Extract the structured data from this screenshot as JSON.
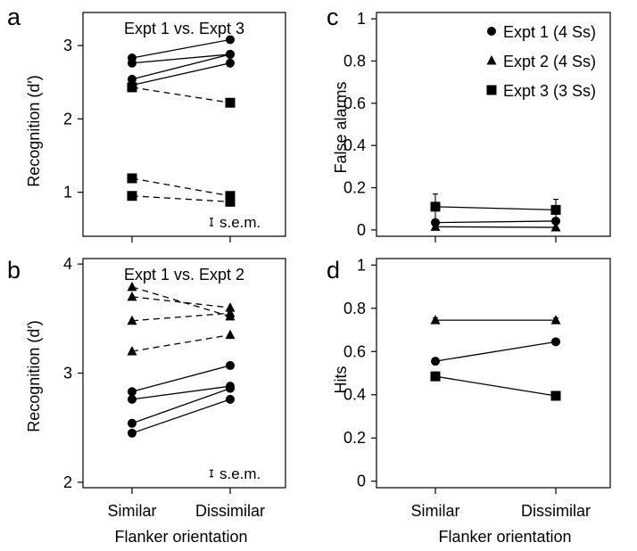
{
  "panel_letters": [
    "a",
    "b",
    "c",
    "d"
  ],
  "x_axis_label": "Flanker orientation",
  "sem_label": "s.e.m.",
  "legend": {
    "entries": [
      {
        "label": "Expt 1 (4 Ss)",
        "marker": "circle"
      },
      {
        "label": "Expt 2 (4 Ss)",
        "marker": "triangle"
      },
      {
        "label": "Expt 3 (3 Ss)",
        "marker": "square"
      }
    ],
    "placement": "top-right of panel c"
  },
  "chart_data": [
    {
      "panel": "a",
      "type": "line",
      "title": "Expt 1 vs. Expt 3",
      "ylabel": "Recognition (d′)",
      "xlabel": "Flanker orientation",
      "categories": [
        "Similar",
        "Dissimilar"
      ],
      "ylim": [
        0.4,
        3.45
      ],
      "yticks": [
        1,
        2,
        3
      ],
      "grid": false,
      "sem_bar": 0.1,
      "series": [
        {
          "marker": "circle",
          "dashed": false,
          "values": [
            2.83,
            3.08
          ]
        },
        {
          "marker": "circle",
          "dashed": false,
          "values": [
            2.76,
            2.88
          ]
        },
        {
          "marker": "circle",
          "dashed": false,
          "values": [
            2.54,
            2.88
          ]
        },
        {
          "marker": "circle",
          "dashed": false,
          "values": [
            2.46,
            2.76
          ]
        },
        {
          "marker": "square",
          "dashed": true,
          "values": [
            2.43,
            2.22
          ]
        },
        {
          "marker": "square",
          "dashed": true,
          "values": [
            1.19,
            0.95
          ]
        },
        {
          "marker": "square",
          "dashed": true,
          "values": [
            0.95,
            0.87
          ]
        }
      ]
    },
    {
      "panel": "b",
      "type": "line",
      "title": "Expt 1 vs. Expt 2",
      "ylabel": "Recognition (d′)",
      "xlabel": "Flanker orientation",
      "categories": [
        "Similar",
        "Dissimilar"
      ],
      "ylim": [
        1.95,
        4.05
      ],
      "yticks": [
        2,
        3,
        4
      ],
      "grid": false,
      "sem_bar": 0.06,
      "series": [
        {
          "marker": "triangle",
          "dashed": true,
          "values": [
            3.79,
            3.52
          ]
        },
        {
          "marker": "triangle",
          "dashed": true,
          "values": [
            3.7,
            3.6
          ]
        },
        {
          "marker": "triangle",
          "dashed": true,
          "values": [
            3.48,
            3.55
          ]
        },
        {
          "marker": "triangle",
          "dashed": true,
          "values": [
            3.2,
            3.35
          ]
        },
        {
          "marker": "circle",
          "dashed": false,
          "values": [
            2.83,
            3.07
          ]
        },
        {
          "marker": "circle",
          "dashed": false,
          "values": [
            2.76,
            2.88
          ]
        },
        {
          "marker": "circle",
          "dashed": false,
          "values": [
            2.54,
            2.86
          ]
        },
        {
          "marker": "circle",
          "dashed": false,
          "values": [
            2.45,
            2.76
          ]
        }
      ]
    },
    {
      "panel": "c",
      "type": "line",
      "title": "",
      "ylabel": "False alarms",
      "xlabel": "Flanker orientation",
      "categories": [
        "Similar",
        "Dissimilar"
      ],
      "ylim": [
        -0.03,
        1.03
      ],
      "yticks": [
        0,
        0.2,
        0.4,
        0.6,
        0.8,
        1
      ],
      "ytick_labels": [
        "0",
        "0.2",
        "0.4",
        "0.6",
        "0.8",
        "1"
      ],
      "grid": false,
      "series": [
        {
          "name": "Expt 1 (4 Ss)",
          "marker": "circle",
          "values": [
            0.035,
            0.042
          ],
          "errors": [
            0.005,
            0.006
          ]
        },
        {
          "name": "Expt 2 (4 Ss)",
          "marker": "triangle",
          "values": [
            0.015,
            0.012
          ],
          "errors": [
            0.003,
            0.003
          ]
        },
        {
          "name": "Expt 3 (3 Ss)",
          "marker": "square",
          "values": [
            0.11,
            0.095
          ],
          "errors": [
            0.06,
            0.05
          ]
        }
      ]
    },
    {
      "panel": "d",
      "type": "line",
      "title": "",
      "ylabel": "Hits",
      "xlabel": "Flanker orientation",
      "categories": [
        "Similar",
        "Dissimilar"
      ],
      "ylim": [
        -0.03,
        1.03
      ],
      "yticks": [
        0,
        0.2,
        0.4,
        0.6,
        0.8,
        1
      ],
      "ytick_labels": [
        "0",
        "0.2",
        "0.4",
        "0.6",
        "0.8",
        "1"
      ],
      "grid": false,
      "series": [
        {
          "name": "Expt 2 (4 Ss)",
          "marker": "triangle",
          "values": [
            0.745,
            0.745
          ],
          "errors": [
            0.01,
            0.01
          ]
        },
        {
          "name": "Expt 1 (4 Ss)",
          "marker": "circle",
          "values": [
            0.555,
            0.645
          ],
          "errors": [
            0.008,
            0.01
          ]
        },
        {
          "name": "Expt 3 (3 Ss)",
          "marker": "square",
          "values": [
            0.485,
            0.395
          ],
          "errors": [
            0.02,
            0.02
          ]
        }
      ]
    }
  ]
}
